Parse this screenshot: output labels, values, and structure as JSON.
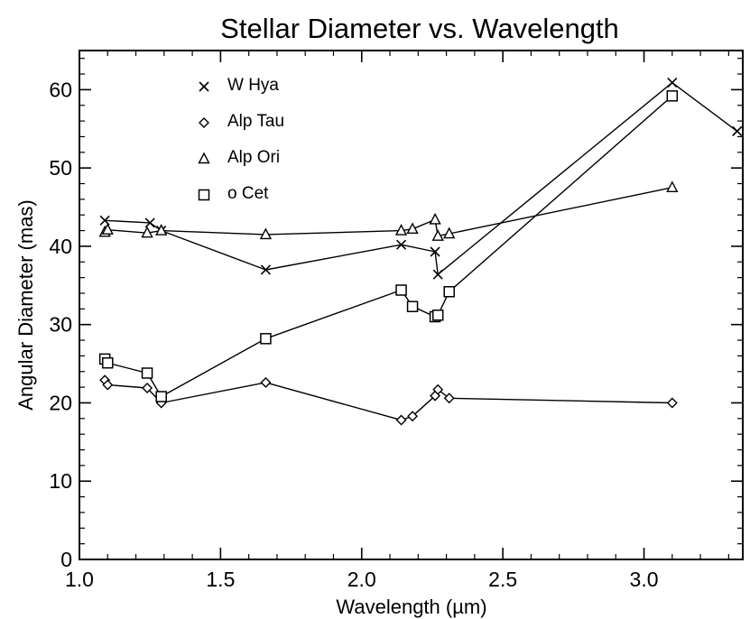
{
  "chart_data": {
    "type": "line",
    "title": "Stellar Diameter vs. Wavelength",
    "xlabel": "Wavelength (µm)",
    "ylabel": "Angular Diameter (mas)",
    "xlim": [
      1.0,
      3.35
    ],
    "ylim": [
      0,
      65
    ],
    "xticks": [
      "1.0",
      "1.5",
      "2.0",
      "2.5",
      "3.0"
    ],
    "yticks": [
      "0",
      "10",
      "20",
      "30",
      "40",
      "50",
      "60"
    ],
    "legend_position": "top-left",
    "series": [
      {
        "name": "W Hya",
        "marker": "cross",
        "segments": [
          [
            [
              1.09,
              43.3
            ],
            [
              1.25,
              43.0
            ],
            [
              1.29,
              42.0
            ],
            [
              1.66,
              37.0
            ],
            [
              2.14,
              40.2
            ],
            [
              2.26,
              39.3
            ],
            [
              2.27,
              36.4
            ]
          ],
          [
            [
              2.27,
              36.4
            ],
            [
              3.1,
              60.9
            ],
            [
              3.33,
              54.7
            ]
          ]
        ]
      },
      {
        "name": "Alp Tau",
        "marker": "diamond",
        "segments": [
          [
            [
              1.09,
              22.9
            ],
            [
              1.1,
              22.3
            ],
            [
              1.24,
              21.9
            ],
            [
              1.29,
              20.0
            ],
            [
              1.66,
              22.6
            ],
            [
              2.14,
              17.8
            ],
            [
              2.18,
              18.3
            ],
            [
              2.26,
              20.9
            ],
            [
              2.27,
              21.7
            ],
            [
              2.31,
              20.6
            ],
            [
              3.1,
              20.0
            ]
          ]
        ]
      },
      {
        "name": "Alp Ori",
        "marker": "triangle",
        "segments": [
          [
            [
              1.09,
              41.8
            ],
            [
              1.1,
              42.1
            ],
            [
              1.24,
              41.7
            ],
            [
              1.29,
              42.0
            ],
            [
              1.66,
              41.5
            ],
            [
              2.14,
              42.0
            ],
            [
              2.18,
              42.2
            ],
            [
              2.26,
              43.4
            ],
            [
              2.27,
              41.3
            ],
            [
              2.31,
              41.6
            ],
            [
              3.1,
              47.5
            ]
          ]
        ]
      },
      {
        "name": "o Cet",
        "marker": "square",
        "segments": [
          [
            [
              1.09,
              25.6
            ],
            [
              1.1,
              25.1
            ],
            [
              1.24,
              23.8
            ],
            [
              1.29,
              20.8
            ],
            [
              1.66,
              28.2
            ],
            [
              2.14,
              34.4
            ],
            [
              2.18,
              32.3
            ],
            [
              2.26,
              31.0
            ],
            [
              2.27,
              31.2
            ],
            [
              2.31,
              34.2
            ],
            [
              3.1,
              59.2
            ]
          ]
        ]
      }
    ]
  }
}
